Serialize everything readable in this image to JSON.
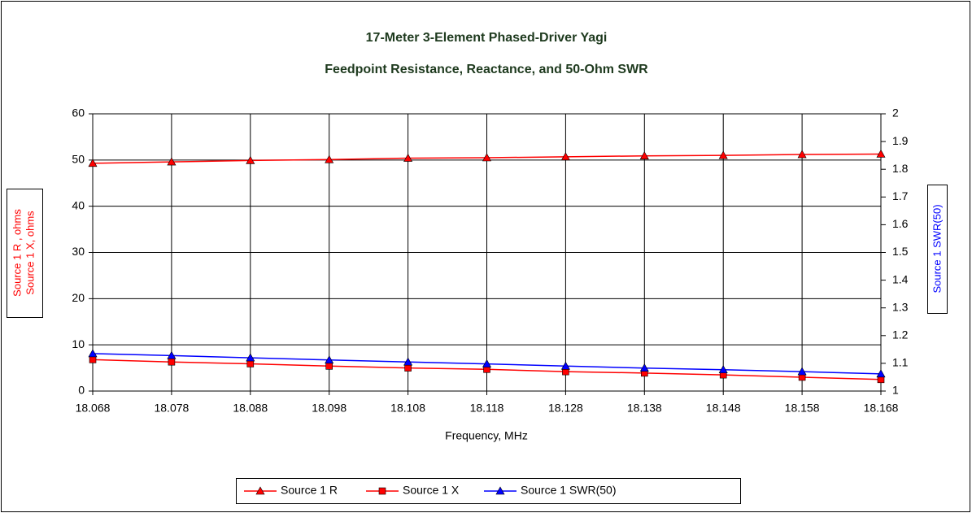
{
  "chart_data": {
    "type": "line",
    "title": [
      "17-Meter 3-Element Phased-Driver Yagi",
      "Feedpoint Resistance, Reactance, and 50-Ohm SWR"
    ],
    "xlabel": "Frequency, MHz",
    "ylabel": [
      "Source 1 R , ohms",
      "Source 1 X, ohms"
    ],
    "y2label": "Source 1 SWR(50)",
    "x": [
      18.068,
      18.078,
      18.088,
      18.098,
      18.108,
      18.118,
      18.128,
      18.138,
      18.148,
      18.158,
      18.168
    ],
    "xlim": [
      18.068,
      18.168
    ],
    "xticks": [
      18.068,
      18.078,
      18.088,
      18.098,
      18.108,
      18.118,
      18.128,
      18.138,
      18.148,
      18.158,
      18.168
    ],
    "ylim": [
      0,
      60
    ],
    "yticks": [
      0,
      10,
      20,
      30,
      40,
      50,
      60
    ],
    "y2lim": [
      1,
      2
    ],
    "y2ticks": [
      1,
      1.1,
      1.2,
      1.3,
      1.4,
      1.5,
      1.6,
      1.7,
      1.8,
      1.9,
      2
    ],
    "grid": true,
    "legend": "bottom",
    "series": [
      {
        "name": "Source 1 R",
        "color": "#ff0000",
        "marker": "triangle",
        "values": [
          49.3,
          49.6,
          49.9,
          50.1,
          50.4,
          50.5,
          50.7,
          50.9,
          51.0,
          51.2,
          51.3
        ]
      },
      {
        "name": "Source 1 X",
        "color": "#ff0000",
        "marker": "square",
        "values": [
          6.8,
          6.3,
          5.9,
          5.4,
          5.0,
          4.7,
          4.2,
          3.9,
          3.5,
          3.0,
          2.5
        ]
      },
      {
        "name": "Source 1 SWR(50)",
        "color": "#0000ff",
        "marker": "triangle",
        "axis": "y2",
        "values": [
          1.135,
          1.128,
          1.12,
          1.112,
          1.105,
          1.098,
          1.09,
          1.083,
          1.077,
          1.07,
          1.062
        ]
      }
    ]
  }
}
